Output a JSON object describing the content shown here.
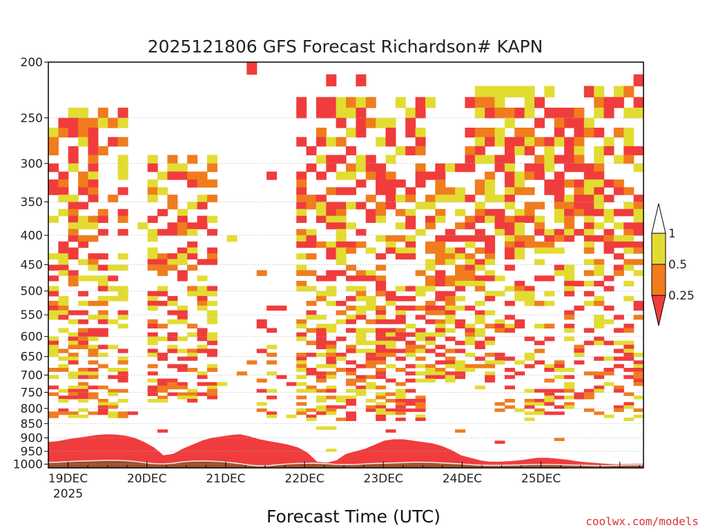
{
  "credit": "coolwx.com/models",
  "colors": {
    "above_1": "#ffffff",
    "r_0_5_to_1": "#e2dc32",
    "r_0_25_to_0_5": "#f07c1e",
    "below_0_25": "#f03c3c",
    "ground": "#9a4f2b",
    "boundary_line": "#f0f0f0",
    "frame": "#000000",
    "grid": "#b0b0b0",
    "credit": "#e0303a"
  },
  "chart_data": {
    "type": "heatmap",
    "title": "2025121806 GFS Forecast Richardson# KAPN",
    "xlabel": "Forecast Time (UTC)",
    "ylabel": "",
    "x_tick_labels": [
      "19DEC",
      "20DEC",
      "21DEC",
      "22DEC",
      "23DEC",
      "24DEC",
      "25DEC"
    ],
    "x_subtick_label": "2025",
    "x_ticks_day": [
      1,
      2,
      3,
      4,
      5,
      6,
      7
    ],
    "x_range_day": [
      0.75,
      8.3
    ],
    "y_tick_labels": [
      "200",
      "250",
      "300",
      "350",
      "400",
      "450",
      "500",
      "550",
      "600",
      "650",
      "700",
      "750",
      "800",
      "850",
      "900",
      "950",
      "1000"
    ],
    "y_range_hpa": [
      200,
      1015
    ],
    "y_scale": "log-pressure, increasing downward",
    "grid": "horizontal dotted lines at each pressure tick",
    "legend": {
      "position": "right",
      "labels": [
        "1",
        "0.5",
        "0.25"
      ],
      "bins": [
        "> 1",
        "0.5 - 1",
        "0.25 - 0.5",
        "< 0.25"
      ]
    },
    "time_step_hours": 3,
    "surface_pressure_hpa": [
      993,
      992,
      990,
      988,
      987,
      986,
      985,
      985,
      986,
      989,
      994,
      998,
      999,
      996,
      991,
      988,
      987,
      988,
      990,
      994,
      998,
      1004,
      1007,
      1006,
      1002,
      999,
      997,
      996,
      996,
      998,
      1001,
      1002,
      1001,
      999,
      997,
      996,
      995,
      994,
      992,
      992,
      993,
      995,
      997,
      999,
      1002,
      1004,
      1005,
      1005,
      1004,
      1003,
      1002,
      1001,
      1001,
      1002,
      1003,
      1004,
      1005,
      1006,
      1006,
      1005,
      1004,
      1003,
      1003
    ],
    "surface_stable_layer_top_hpa": [
      915,
      912,
      905,
      900,
      895,
      890,
      887,
      888,
      892,
      900,
      915,
      935,
      965,
      960,
      940,
      925,
      910,
      900,
      895,
      890,
      887,
      895,
      905,
      912,
      918,
      925,
      935,
      955,
      990,
      1000,
      985,
      960,
      950,
      940,
      925,
      910,
      905,
      905,
      910,
      915,
      920,
      930,
      945,
      965,
      975,
      985,
      990,
      990,
      988,
      985,
      980,
      975,
      975,
      978,
      982,
      988,
      992,
      995,
      998,
      1000,
      1002,
      1002,
      1003
    ],
    "unstable_episodes": [
      {
        "start_day": 0.8,
        "end_day": 1.75,
        "top_hpa": 240,
        "bottom_hpa": 830,
        "intensity": 0.45
      },
      {
        "start_day": 1.95,
        "end_day": 2.95,
        "top_hpa": 290,
        "bottom_hpa": 780,
        "intensity": 0.5
      },
      {
        "start_day": 3.45,
        "end_day": 3.65,
        "top_hpa": 440,
        "bottom_hpa": 880,
        "intensity": 0.25
      },
      {
        "start_day": 3.85,
        "end_day": 5.5,
        "top_hpa": 230,
        "bottom_hpa": 840,
        "intensity": 0.5
      },
      {
        "start_day": 5.55,
        "end_day": 6.4,
        "top_hpa": 300,
        "bottom_hpa": 720,
        "intensity": 0.6
      },
      {
        "start_day": 6.0,
        "end_day": 8.3,
        "top_hpa": 225,
        "bottom_hpa": 430,
        "intensity": 0.65
      },
      {
        "start_day": 6.4,
        "end_day": 8.3,
        "top_hpa": 430,
        "bottom_hpa": 820,
        "intensity": 0.3
      }
    ]
  }
}
